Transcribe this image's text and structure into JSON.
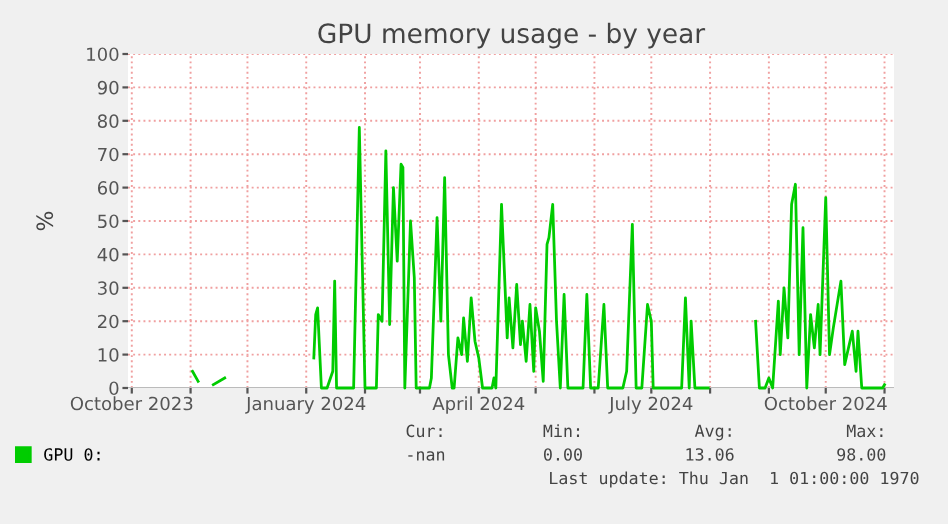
{
  "chart_data": {
    "type": "line",
    "title": "GPU memory usage - by year",
    "ylabel": "%",
    "x": [
      "2023-11-02",
      "2023-11-05",
      "2023-11-09",
      "2023-11-13",
      "2023-11-19",
      "2023-12-20",
      "2024-01-05",
      "2024-01-06",
      "2024-01-07",
      "2024-01-09",
      "2024-01-12",
      "2024-01-15",
      "2024-01-16",
      "2024-01-17",
      "2024-01-26",
      "2024-01-29",
      "2024-02-01",
      "2024-02-07",
      "2024-02-08",
      "2024-02-10",
      "2024-02-12",
      "2024-02-14",
      "2024-02-16",
      "2024-02-18",
      "2024-02-20",
      "2024-02-21",
      "2024-02-22",
      "2024-02-25",
      "2024-02-27",
      "2024-02-28",
      "2024-03-06",
      "2024-03-07",
      "2024-03-10",
      "2024-03-12",
      "2024-03-14",
      "2024-03-16",
      "2024-03-18",
      "2024-03-19",
      "2024-03-21",
      "2024-03-23",
      "2024-03-24",
      "2024-03-26",
      "2024-03-28",
      "2024-03-30",
      "2024-04-01",
      "2024-04-03",
      "2024-04-08",
      "2024-04-09",
      "2024-04-10",
      "2024-04-13",
      "2024-04-16",
      "2024-04-17",
      "2024-04-19",
      "2024-04-21",
      "2024-04-23",
      "2024-04-24",
      "2024-04-26",
      "2024-04-28",
      "2024-04-30",
      "2024-05-01",
      "2024-05-03",
      "2024-05-05",
      "2024-05-07",
      "2024-05-08",
      "2024-05-10",
      "2024-05-12",
      "2024-05-14",
      "2024-05-16",
      "2024-05-18",
      "2024-05-26",
      "2024-05-28",
      "2024-05-30",
      "2024-06-03",
      "2024-06-06",
      "2024-06-08",
      "2024-06-16",
      "2024-06-18",
      "2024-06-21",
      "2024-06-23",
      "2024-06-26",
      "2024-06-29",
      "2024-07-01",
      "2024-07-02",
      "2024-07-17",
      "2024-07-19",
      "2024-07-21",
      "2024-07-22",
      "2024-07-24",
      "2024-07-31",
      "2024-08-10",
      "2024-08-25",
      "2024-08-27",
      "2024-08-30",
      "2024-09-01",
      "2024-09-03",
      "2024-09-06",
      "2024-09-07",
      "2024-09-09",
      "2024-09-11",
      "2024-09-13",
      "2024-09-15",
      "2024-09-17",
      "2024-09-19",
      "2024-09-21",
      "2024-09-23",
      "2024-09-25",
      "2024-09-27",
      "2024-09-28",
      "2024-10-01",
      "2024-10-03",
      "2024-10-05",
      "2024-10-09",
      "2024-10-11",
      "2024-10-13",
      "2024-10-15",
      "2024-10-17",
      "2024-10-18",
      "2024-10-20",
      "2024-10-31",
      "2024-11-01"
    ],
    "series": [
      {
        "name": "GPU 0:",
        "color": "#00cc00",
        "values": [
          5,
          2,
          null,
          1,
          3,
          null,
          9,
          22,
          24,
          0,
          0,
          5,
          32,
          0,
          0,
          78,
          0,
          0,
          22,
          20,
          71,
          19,
          60,
          38,
          67,
          66,
          0,
          50,
          33,
          0,
          0,
          3,
          51,
          20,
          63,
          10,
          0,
          0,
          15,
          10,
          21,
          8,
          27,
          14,
          9,
          0,
          0,
          3,
          0,
          55,
          15,
          27,
          12,
          31,
          13,
          20,
          8,
          25,
          5,
          24,
          17,
          2,
          43,
          45,
          55,
          20,
          0,
          28,
          0,
          0,
          28,
          0,
          0,
          25,
          0,
          0,
          5,
          49,
          0,
          0,
          25,
          20,
          0,
          0,
          27,
          0,
          20,
          0,
          0,
          null,
          20,
          0,
          0,
          3,
          0,
          26,
          10,
          30,
          15,
          55,
          61,
          10,
          48,
          0,
          22,
          12,
          25,
          10,
          57,
          10,
          18,
          32,
          7,
          12,
          17,
          5,
          17,
          0,
          0,
          1
        ]
      }
    ],
    "xlim": [
      "2023-09-29",
      "2024-11-06"
    ],
    "xticks": [
      {
        "value": "2023-10-01",
        "label": "October 2023"
      },
      {
        "value": "2023-11-01",
        "label": null
      },
      {
        "value": "2023-12-01",
        "label": null
      },
      {
        "value": "2024-01-01",
        "label": "January 2024"
      },
      {
        "value": "2024-02-01",
        "label": null
      },
      {
        "value": "2024-03-01",
        "label": null
      },
      {
        "value": "2024-04-01",
        "label": "April 2024"
      },
      {
        "value": "2024-05-01",
        "label": null
      },
      {
        "value": "2024-06-01",
        "label": null
      },
      {
        "value": "2024-07-01",
        "label": "July 2024"
      },
      {
        "value": "2024-08-01",
        "label": null
      },
      {
        "value": "2024-09-01",
        "label": null
      },
      {
        "value": "2024-10-01",
        "label": "October 2024"
      },
      {
        "value": "2024-11-01",
        "label": null
      }
    ],
    "ylim": [
      0,
      100
    ],
    "yticks": [
      0,
      10,
      20,
      30,
      40,
      50,
      60,
      70,
      80,
      90,
      100
    ],
    "grid": true,
    "legend": "bottom left",
    "line_style": "solid",
    "marker": "none",
    "annotations": [
      "Cur:",
      "Min:",
      "Avg:",
      "Max:",
      "-nan",
      "0.00",
      "13.06",
      "98.00",
      "Last update: Thu Jan  1 01:00:00 1970"
    ]
  }
}
